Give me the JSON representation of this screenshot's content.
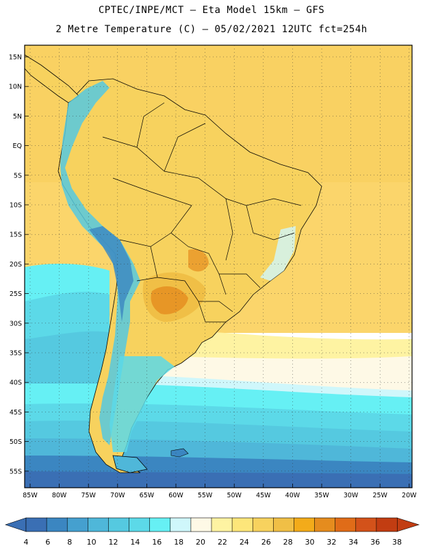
{
  "title_line1": "CPTEC/INPE/MCT –  Eta Model 15km – GFS",
  "title_line2": "2 Metre Temperature (C) – 05/02/2021 12UTC fct=254h",
  "lat_labels": [
    "15N",
    "10N",
    "5N",
    "EQ",
    "5S",
    "10S",
    "15S",
    "20S",
    "25S",
    "30S",
    "35S",
    "40S",
    "45S",
    "50S",
    "55S"
  ],
  "lon_labels": [
    "85W",
    "80W",
    "75W",
    "70W",
    "65W",
    "60W",
    "55W",
    "50W",
    "45W",
    "40W",
    "35W",
    "30W",
    "25W",
    "20W"
  ],
  "colorbar": {
    "labels": [
      "4",
      "6",
      "8",
      "10",
      "12",
      "14",
      "16",
      "18",
      "20",
      "22",
      "24",
      "26",
      "28",
      "30",
      "32",
      "34",
      "36",
      "38"
    ],
    "colors": [
      "#3a6fb4",
      "#3b86c1",
      "#45a0cf",
      "#4fb7d9",
      "#55c9e0",
      "#5cd9e8",
      "#66f0f4",
      "#cff7fb",
      "#fef9e6",
      "#fef3a2",
      "#fde67a",
      "#f7d25e",
      "#f0bf46",
      "#f3ab1a",
      "#e58c1e",
      "#e06c18",
      "#d3521a",
      "#c23d12"
    ]
  },
  "colors": {
    "ocean_warm": "#fbd56b",
    "land_warm": "#f7d25e",
    "cold_band": "#55c9e0",
    "deep_cold": "#3a6fb4"
  }
}
